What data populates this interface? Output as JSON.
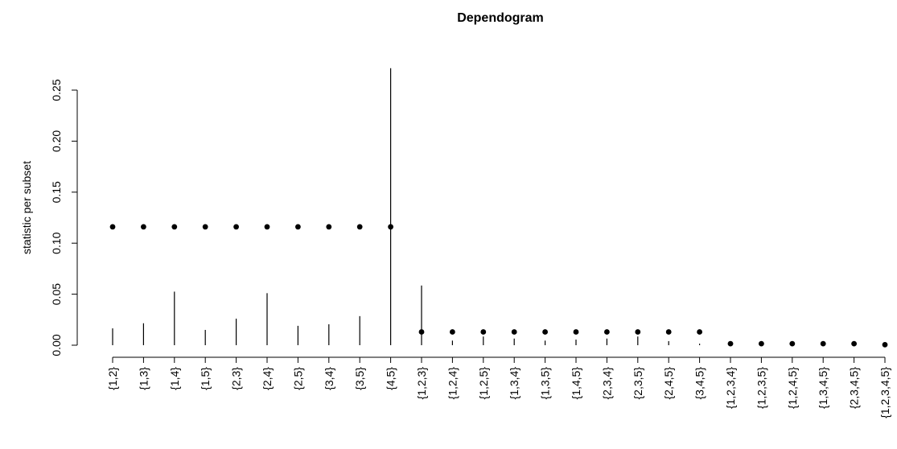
{
  "chart_data": {
    "type": "dependogram",
    "title": "Dependogram",
    "ylabel": "statistic per subset",
    "xlabel": "",
    "ylim": [
      0,
      0.27
    ],
    "yticks": [
      0.0,
      0.05,
      0.1,
      0.15,
      0.2,
      0.25
    ],
    "ytick_labels": [
      "0.00",
      "0.05",
      "0.10",
      "0.15",
      "0.20",
      "0.25"
    ],
    "categories": [
      "{1,2}",
      "{1,3}",
      "{1,4}",
      "{1,5}",
      "{2,3}",
      "{2,4}",
      "{2,5}",
      "{3,4}",
      "{3,5}",
      "{4,5}",
      "{1,2,3}",
      "{1,2,4}",
      "{1,2,5}",
      "{1,3,4}",
      "{1,3,5}",
      "{1,4,5}",
      "{2,3,4}",
      "{2,3,5}",
      "{2,4,5}",
      "{3,4,5}",
      "{1,2,3,4}",
      "{1,2,3,5}",
      "{1,2,4,5}",
      "{1,3,4,5}",
      "{2,3,4,5}",
      "{1,2,3,4,5}"
    ],
    "statistics": [
      0.0165,
      0.0215,
      0.0525,
      0.015,
      0.026,
      0.051,
      0.019,
      0.0205,
      0.0285,
      0.2715,
      0.0585,
      0.0045,
      0.0085,
      0.0065,
      0.0045,
      0.0055,
      0.0065,
      0.0085,
      0.004,
      0.0015,
      0.0015,
      0.001,
      0.0015,
      0.0015,
      0.001,
      0.0005
    ],
    "critical_values": [
      0.116,
      0.116,
      0.116,
      0.116,
      0.116,
      0.116,
      0.116,
      0.116,
      0.116,
      0.116,
      0.013,
      0.013,
      0.013,
      0.013,
      0.013,
      0.013,
      0.013,
      0.013,
      0.013,
      0.013,
      0.0015,
      0.0015,
      0.0015,
      0.0015,
      0.0015,
      0.0005
    ],
    "colors": {
      "line": "#000000",
      "point": "#000000",
      "background": "#ffffff"
    }
  }
}
